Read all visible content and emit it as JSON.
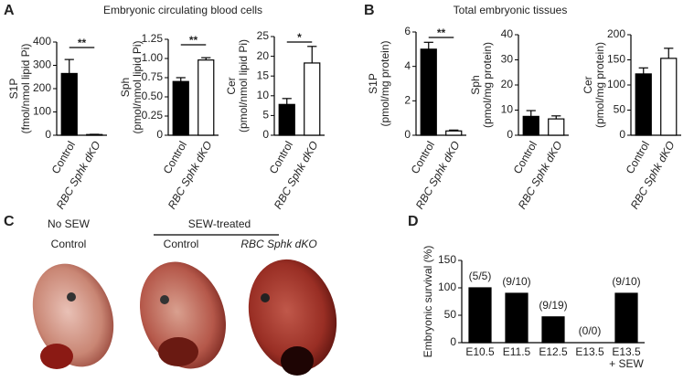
{
  "panels": {
    "a": {
      "letter": "A",
      "title": "Embryonic circulating blood cells"
    },
    "b": {
      "letter": "B",
      "title": "Total embryonic tissues"
    },
    "c": {
      "letter": "C",
      "no_sew": "No SEW",
      "no_sew_label": "Control",
      "sew": "SEW-treated",
      "sew_control": "Control",
      "sew_dko": "RBC Sphk dKO"
    },
    "d": {
      "letter": "D"
    }
  },
  "chart_data": [
    {
      "type": "bar",
      "y_label": "S1P",
      "y_unit": "(fmol/nmol lipid Pi)",
      "categories": [
        "Control",
        "RBC Sphk dKO"
      ],
      "values": [
        265,
        3
      ],
      "errors": [
        60,
        1
      ],
      "colors": [
        "#000000",
        "#ffffff"
      ],
      "ylim": [
        0,
        400
      ],
      "yticks": [
        0,
        100,
        200,
        300,
        400
      ],
      "significance": "**"
    },
    {
      "type": "bar",
      "y_label": "Sph",
      "y_unit": "(pmol/nmol lipid Pi)",
      "categories": [
        "Control",
        "RBC Sphk dKO"
      ],
      "values": [
        0.7,
        0.98
      ],
      "errors": [
        0.05,
        0.03
      ],
      "colors": [
        "#000000",
        "#ffffff"
      ],
      "ylim": [
        0,
        1.25
      ],
      "yticks": [
        0,
        0.25,
        {
          "value": 0.5,
          "label": "0.50"
        },
        0.75,
        {
          "value": 1,
          "label": "1.00"
        },
        1.25
      ],
      "significance": "**"
    },
    {
      "type": "bar",
      "y_label": "Cer",
      "y_unit": "(pmol/nmol lipid Pi)",
      "categories": [
        "Control",
        "RBC Sphk dKO"
      ],
      "values": [
        7.8,
        18.3
      ],
      "errors": [
        1.5,
        4.2
      ],
      "colors": [
        "#000000",
        "#ffffff"
      ],
      "ylim": [
        0,
        25
      ],
      "yticks": [
        0,
        5,
        10,
        15,
        20,
        25
      ],
      "significance": "*"
    },
    {
      "type": "bar",
      "y_label": "S1P",
      "y_unit": "(pmol/mg protein)",
      "categories": [
        "Control",
        "RBC Sphk dKO"
      ],
      "values": [
        5.0,
        0.25
      ],
      "errors": [
        0.4,
        0.05
      ],
      "colors": [
        "#000000",
        "#ffffff"
      ],
      "ylim": [
        0,
        6
      ],
      "yticks": [
        0,
        2,
        4,
        6
      ],
      "significance": "**"
    },
    {
      "type": "bar",
      "y_label": "Sph",
      "y_unit": "(pmol/mg protein)",
      "categories": [
        "Control",
        "RBC Sphk dKO"
      ],
      "values": [
        7.5,
        6.5
      ],
      "errors": [
        2.3,
        1.2
      ],
      "colors": [
        "#000000",
        "#ffffff"
      ],
      "ylim": [
        0,
        40
      ],
      "yticks": [
        0,
        10,
        20,
        30,
        40
      ]
    },
    {
      "type": "bar",
      "y_label": "Cer",
      "y_unit": "(pmol/mg protein)",
      "categories": [
        "Control",
        "RBC Sphk dKO"
      ],
      "values": [
        122,
        153
      ],
      "errors": [
        12,
        20
      ],
      "colors": [
        "#000000",
        "#ffffff"
      ],
      "ylim": [
        0,
        200
      ],
      "yticks": [
        0,
        50,
        100,
        150,
        200
      ]
    },
    {
      "type": "bar",
      "y_label": "Embryonic survival (%)",
      "categories": [
        "E10.5",
        "E11.5",
        "E12.5",
        "E13.5",
        "E13.5\n+ SEW"
      ],
      "values": [
        100,
        90,
        47,
        0,
        90
      ],
      "count_labels": [
        "(5/5)",
        "(9/10)",
        "(9/19)",
        "(0/0)",
        "(9/10)"
      ],
      "colors": [
        "#000000",
        "#000000",
        "#000000",
        "#000000",
        "#000000"
      ],
      "ylim": [
        0,
        150
      ],
      "yticks": [
        0,
        50,
        100,
        150
      ]
    }
  ]
}
